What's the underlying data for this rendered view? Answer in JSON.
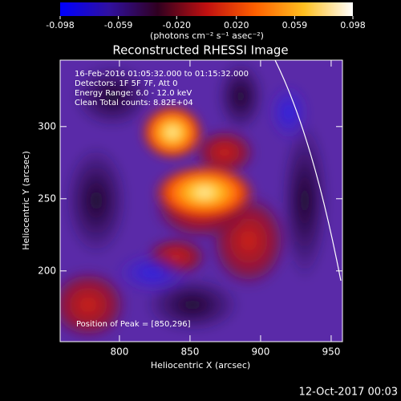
{
  "chart_data": {
    "type": "image",
    "title": "Reconstructed RHESSI Image",
    "x_label": "Heliocentric X (arcsec)",
    "y_label": "Heliocentric Y (arcsec)",
    "xlim": [
      758,
      958
    ],
    "xticks": [
      800,
      850,
      900,
      950
    ],
    "ylim": [
      151,
      346
    ],
    "yticks": [
      200,
      250,
      300
    ],
    "colorbar": {
      "label": "(photons cm⁻² s⁻¹ asec⁻²)",
      "clim": [
        -0.098,
        0.098
      ],
      "colormap": [
        "#0000ff",
        "#3010a0",
        "#300020",
        "#c01010",
        "#ff6000",
        "#ffc020",
        "#ffffff"
      ],
      "ticks": [
        -0.098,
        -0.059,
        {
          "value": -0.02,
          "label": "-0.020"
        },
        {
          "value": 0.02,
          "label": "0.020"
        },
        0.059,
        0.098
      ]
    },
    "annotations": [
      "16-Feb-2016 01:05:32.000 to 01:15:32.000",
      "Detectors: 1F 5F 7F, Att 0",
      "Energy Range: 6.0 - 12.0 keV",
      "Clean     Total counts: 8.82E+04"
    ],
    "peak_label": "Position of Peak = [850,296]",
    "timestamp": "12-Oct-2017 00:03"
  }
}
